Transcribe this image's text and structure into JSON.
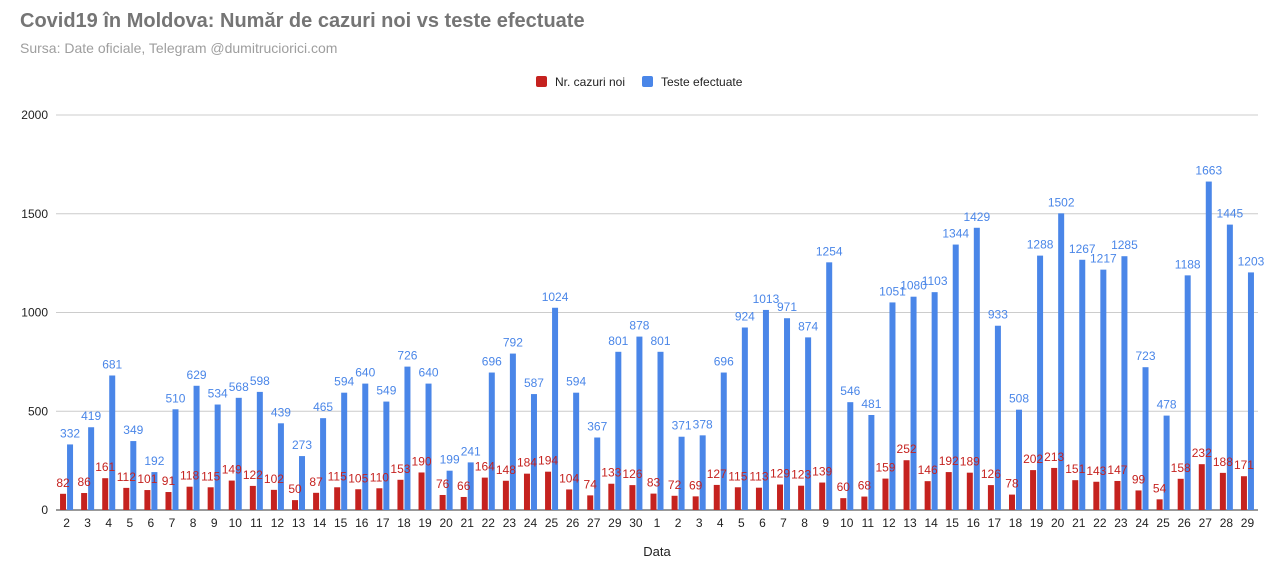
{
  "chart_data": {
    "type": "bar",
    "title": "Covid19 în Moldova: Număr de cazuri noi vs teste efectuate",
    "subtitle": "Sursa: Date oficiale, Telegram @dumitruciorici.com",
    "xlabel": "Data",
    "ylabel": "",
    "ylim": [
      0,
      2000
    ],
    "yticks": [
      0,
      500,
      1000,
      1500,
      2000
    ],
    "grid": true,
    "legend_position": "top",
    "categories": [
      "2",
      "3",
      "4",
      "5",
      "6",
      "7",
      "8",
      "9",
      "10",
      "11",
      "12",
      "13",
      "14",
      "15",
      "16",
      "17",
      "18",
      "19",
      "20",
      "21",
      "22",
      "23",
      "24",
      "25",
      "26",
      "27",
      "29",
      "30",
      "1",
      "2",
      "3",
      "4",
      "5",
      "6",
      "7",
      "8",
      "9",
      "10",
      "11",
      "12",
      "13",
      "14",
      "15",
      "16",
      "17",
      "18",
      "19",
      "20",
      "21",
      "22",
      "23",
      "24",
      "25",
      "26",
      "27",
      "28",
      "29"
    ],
    "series": [
      {
        "name": "Nr. cazuri noi",
        "color": "#c5221f",
        "values": [
          82,
          86,
          161,
          112,
          101,
          91,
          118,
          115,
          149,
          122,
          102,
          50,
          87,
          115,
          105,
          110,
          153,
          190,
          76,
          66,
          164,
          148,
          184,
          194,
          104,
          74,
          133,
          126,
          83,
          72,
          69,
          127,
          115,
          113,
          129,
          123,
          139,
          60,
          68,
          159,
          252,
          146,
          192,
          189,
          126,
          78,
          202,
          213,
          151,
          143,
          147,
          99,
          54,
          158,
          232,
          188,
          171
        ]
      },
      {
        "name": "Teste efectuate",
        "color": "#4a86e8",
        "values": [
          332,
          419,
          681,
          349,
          192,
          510,
          629,
          534,
          568,
          598,
          439,
          273,
          465,
          594,
          640,
          549,
          726,
          640,
          199,
          241,
          696,
          792,
          587,
          1024,
          594,
          367,
          801,
          878,
          801,
          371,
          378,
          696,
          924,
          1013,
          971,
          874,
          1254,
          546,
          481,
          1051,
          1080,
          1103,
          1344,
          1429,
          933,
          508,
          1288,
          1502,
          1267,
          1217,
          1285,
          723,
          478,
          1188,
          1663,
          1445,
          1203
        ]
      }
    ]
  }
}
